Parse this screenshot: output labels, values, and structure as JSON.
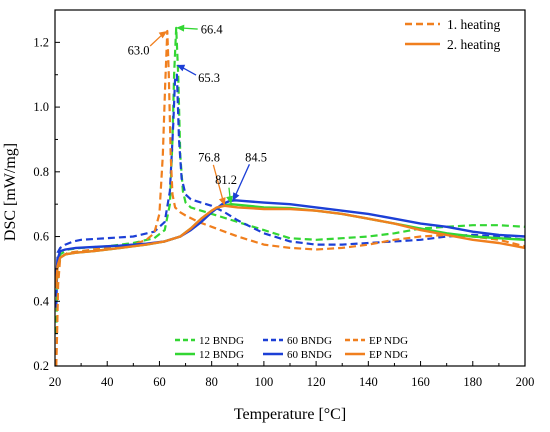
{
  "chart_data": {
    "type": "line",
    "xlabel": "Temperature [°C]",
    "ylabel": "DSC [mW/mg]",
    "xlim": [
      20,
      200
    ],
    "ylim": [
      0.2,
      1.3
    ],
    "xticks": [
      20,
      40,
      60,
      80,
      100,
      120,
      140,
      160,
      180,
      200
    ],
    "yticks": [
      0.2,
      0.4,
      0.6,
      0.8,
      1.0,
      1.2
    ],
    "ytick_labels": [
      "0.2",
      "0.4",
      "0.6",
      "0.8",
      "1.0",
      "1.2"
    ],
    "legend_position": "top-right",
    "legend": [
      {
        "label": "1. heating",
        "style": "dashed",
        "color": "#f07f1e"
      },
      {
        "label": "2. heating",
        "style": "solid",
        "color": "#f07f1e"
      }
    ],
    "series_legend": {
      "position": "bottom-center",
      "rows": [
        [
          {
            "label": "12 BNDG",
            "style": "dashed",
            "color": "#33d633"
          },
          {
            "label": "60 BNDG",
            "style": "dashed",
            "color": "#1c3fd6"
          },
          {
            "label": "EP NDG",
            "style": "dashed",
            "color": "#f07f1e"
          }
        ],
        [
          {
            "label": "12 BNDG",
            "style": "solid",
            "color": "#33d633"
          },
          {
            "label": "60 BNDG",
            "style": "solid",
            "color": "#1c3fd6"
          },
          {
            "label": "EP NDG",
            "style": "solid",
            "color": "#f07f1e"
          }
        ]
      ]
    },
    "annotations": [
      {
        "label": "63.0",
        "color": "#f07f1e",
        "point": [
          63.0,
          1.235
        ],
        "text_at": [
          52,
          1.175
        ]
      },
      {
        "label": "66.4",
        "color": "#33d633",
        "point": [
          66.4,
          1.245
        ],
        "text_at": [
          80,
          1.24
        ]
      },
      {
        "label": "65.3",
        "color": "#1c3fd6",
        "point": [
          66.5,
          1.13
        ],
        "text_at": [
          79,
          1.09
        ]
      },
      {
        "label": "76.8",
        "color": "#f07f1e",
        "point": [
          85,
          0.695
        ],
        "text_at": [
          79,
          0.845
        ]
      },
      {
        "label": "81.2",
        "color": "#33d633",
        "point": [
          87.5,
          0.7
        ],
        "text_at": [
          85.5,
          0.775
        ]
      },
      {
        "label": "84.5",
        "color": "#1c3fd6",
        "point": [
          88,
          0.71
        ],
        "text_at": [
          97,
          0.845
        ]
      }
    ],
    "series": [
      {
        "name": "12 BNDG",
        "style": "dashed",
        "color": "#33d633",
        "x": [
          20.5,
          21,
          22,
          25,
          30,
          40,
          50,
          58,
          62,
          64,
          65,
          65.6,
          66.4,
          67.2,
          68,
          69,
          70,
          72,
          76,
          80,
          90,
          100,
          110,
          120,
          130,
          140,
          150,
          160,
          170,
          180,
          190,
          200
        ],
        "y": [
          0.3,
          0.5,
          0.545,
          0.56,
          0.565,
          0.57,
          0.58,
          0.595,
          0.62,
          0.7,
          0.9,
          1.1,
          1.245,
          1.1,
          0.85,
          0.74,
          0.705,
          0.69,
          0.68,
          0.67,
          0.645,
          0.62,
          0.595,
          0.59,
          0.595,
          0.6,
          0.61,
          0.625,
          0.63,
          0.635,
          0.635,
          0.63
        ]
      },
      {
        "name": "60 BNDG",
        "style": "dashed",
        "color": "#1c3fd6",
        "x": [
          20.5,
          21,
          22,
          24,
          27,
          30,
          40,
          50,
          58,
          62,
          64,
          65.3,
          66,
          66.7,
          67.5,
          68.5,
          70,
          72,
          76,
          80,
          85,
          90,
          100,
          110,
          120,
          130,
          140,
          150,
          160,
          170,
          180,
          190,
          200
        ],
        "y": [
          0.38,
          0.55,
          0.565,
          0.575,
          0.585,
          0.59,
          0.595,
          0.6,
          0.615,
          0.645,
          0.74,
          0.95,
          1.09,
          1.1,
          0.9,
          0.78,
          0.73,
          0.715,
          0.705,
          0.695,
          0.675,
          0.65,
          0.61,
          0.585,
          0.575,
          0.575,
          0.58,
          0.585,
          0.59,
          0.6,
          0.605,
          0.6,
          0.59
        ]
      },
      {
        "name": "EP NDG",
        "style": "dashed",
        "color": "#f07f1e",
        "x": [
          20.5,
          20.8,
          21.2,
          22,
          25,
          30,
          40,
          50,
          55,
          58,
          60,
          61.3,
          62.2,
          63.0,
          63.6,
          64.3,
          65,
          66,
          68,
          70,
          75,
          80,
          85,
          90,
          100,
          110,
          120,
          130,
          140,
          150,
          160,
          170,
          180,
          190,
          200
        ],
        "y": [
          0.2,
          0.3,
          0.45,
          0.535,
          0.55,
          0.555,
          0.565,
          0.575,
          0.59,
          0.61,
          0.67,
          0.85,
          1.07,
          1.235,
          1.1,
          0.85,
          0.73,
          0.69,
          0.675,
          0.665,
          0.645,
          0.63,
          0.615,
          0.6,
          0.575,
          0.565,
          0.56,
          0.565,
          0.575,
          0.59,
          0.6,
          0.605,
          0.6,
          0.59,
          0.57
        ]
      },
      {
        "name": "12 BNDG",
        "style": "solid",
        "color": "#33d633",
        "x": [
          20.3,
          21,
          22,
          24,
          28,
          35,
          45,
          55,
          62,
          68,
          72,
          76,
          80,
          84,
          87.5,
          90,
          100,
          110,
          120,
          130,
          140,
          150,
          160,
          170,
          180,
          190,
          200
        ],
        "y": [
          0.44,
          0.51,
          0.535,
          0.545,
          0.55,
          0.555,
          0.565,
          0.575,
          0.585,
          0.6,
          0.625,
          0.655,
          0.68,
          0.695,
          0.7,
          0.698,
          0.69,
          0.688,
          0.68,
          0.67,
          0.655,
          0.64,
          0.625,
          0.61,
          0.6,
          0.595,
          0.59
        ]
      },
      {
        "name": "60 BNDG",
        "style": "solid",
        "color": "#1c3fd6",
        "x": [
          20.3,
          21,
          22,
          24,
          28,
          35,
          45,
          55,
          62,
          68,
          72,
          76,
          80,
          84,
          87,
          89,
          92,
          100,
          110,
          120,
          130,
          140,
          150,
          160,
          170,
          180,
          190,
          200
        ],
        "y": [
          0.46,
          0.53,
          0.555,
          0.56,
          0.565,
          0.568,
          0.572,
          0.578,
          0.585,
          0.6,
          0.62,
          0.645,
          0.675,
          0.7,
          0.71,
          0.712,
          0.71,
          0.705,
          0.7,
          0.69,
          0.68,
          0.67,
          0.655,
          0.64,
          0.63,
          0.615,
          0.605,
          0.6
        ]
      },
      {
        "name": "EP NDG",
        "style": "solid",
        "color": "#f07f1e",
        "x": [
          20.3,
          21,
          22,
          24,
          28,
          35,
          45,
          55,
          62,
          68,
          72,
          76,
          80,
          82,
          85,
          90,
          100,
          110,
          120,
          130,
          140,
          150,
          160,
          170,
          180,
          190,
          200
        ],
        "y": [
          0.44,
          0.51,
          0.535,
          0.545,
          0.55,
          0.555,
          0.565,
          0.575,
          0.585,
          0.6,
          0.625,
          0.655,
          0.68,
          0.69,
          0.695,
          0.69,
          0.685,
          0.685,
          0.68,
          0.67,
          0.655,
          0.64,
          0.62,
          0.605,
          0.59,
          0.58,
          0.565
        ]
      }
    ]
  }
}
